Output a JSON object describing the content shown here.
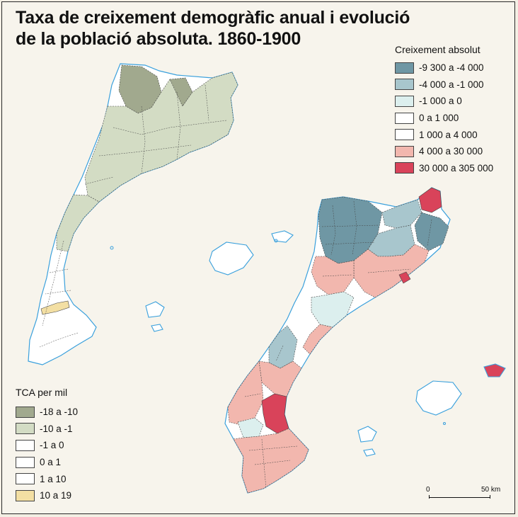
{
  "title": {
    "line1": "Taxa de creixement demogràfic anual i evolució",
    "line2": "de la població absoluta. 1860-1900"
  },
  "legend_absolute": {
    "title": "Creixement absolut",
    "items": [
      {
        "label": "-9 300 a -4 000",
        "color": "#6f97a4"
      },
      {
        "label": "-4 000 a -1 000",
        "color": "#a8c6cd"
      },
      {
        "label": "-1 000 a 0",
        "color": "#dcefee"
      },
      {
        "label": "0 a 1 000",
        "color": "#ffffff"
      },
      {
        "label": "1 000 a 4 000",
        "color": "#ffffff"
      },
      {
        "label": "4 000 a 30 000",
        "color": "#f2b7ae"
      },
      {
        "label": "30 000 a 305 000",
        "color": "#d9435a"
      }
    ]
  },
  "legend_tca": {
    "title": "TCA per mil",
    "items": [
      {
        "label": "-18 a -10",
        "color": "#a1a98e"
      },
      {
        "label": "-10 a -1",
        "color": "#d3dcc4"
      },
      {
        "label": "-1 a 0",
        "color": "#ffffff"
      },
      {
        "label": "0 a 1",
        "color": "#ffffff"
      },
      {
        "label": "1 a 10",
        "color": "#ffffff"
      },
      {
        "label": "10 a 19",
        "color": "#f3dfa3"
      }
    ]
  },
  "scale": {
    "start": "0",
    "end": "50 km"
  },
  "colors": {
    "coast": "#3aa0dc",
    "border": "#333333"
  }
}
